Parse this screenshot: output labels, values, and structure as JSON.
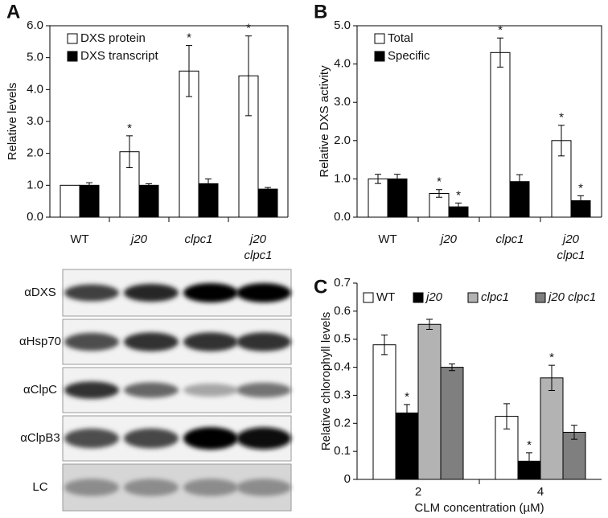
{
  "chart_data": [
    {
      "type": "bar",
      "panel": "A",
      "ylabel": "Relative levels",
      "categories": [
        "WT",
        "j20",
        "clpc1",
        "j20 clpc1"
      ],
      "series": [
        {
          "name": "DXS protein",
          "color": "#ffffff",
          "values": [
            1.0,
            2.05,
            4.58,
            4.43
          ],
          "errors": [
            0,
            0.5,
            0.8,
            1.25
          ],
          "significant": [
            false,
            true,
            true,
            true
          ]
        },
        {
          "name": "DXS transcript",
          "color": "#000000",
          "values": [
            1.0,
            1.0,
            1.05,
            0.88
          ],
          "errors": [
            0.08,
            0.05,
            0.15,
            0.05
          ],
          "significant": [
            false,
            false,
            false,
            false
          ]
        }
      ],
      "marker": "*",
      "legend": "top-left",
      "ylim": [
        0,
        6
      ],
      "yticks": [
        {
          "value": 0,
          "label": "0.0"
        },
        {
          "value": 1,
          "label": "1.0"
        },
        {
          "value": 2,
          "label": "2.0"
        },
        {
          "value": 3,
          "label": "3.0"
        },
        {
          "value": 4,
          "label": "4.0"
        },
        {
          "value": 5,
          "label": "5.0"
        },
        {
          "value": 6,
          "label": "6.0"
        }
      ]
    },
    {
      "type": "bar",
      "panel": "B",
      "ylabel": "Relative DXS activity",
      "categories": [
        "WT",
        "j20",
        "clpc1",
        "j20 clpc1"
      ],
      "series": [
        {
          "name": "Total",
          "color": "#ffffff",
          "values": [
            1.0,
            0.62,
            4.3,
            2.0
          ],
          "errors": [
            0.12,
            0.1,
            0.38,
            0.4
          ],
          "significant": [
            false,
            true,
            true,
            true
          ]
        },
        {
          "name": "Specific",
          "color": "#000000",
          "values": [
            1.0,
            0.27,
            0.93,
            0.43
          ],
          "errors": [
            0.12,
            0.1,
            0.18,
            0.13
          ],
          "significant": [
            false,
            true,
            false,
            true
          ]
        }
      ],
      "marker": "*",
      "legend": "top-left",
      "ylim": [
        0,
        5
      ],
      "yticks": [
        {
          "value": 0,
          "label": "0.0"
        },
        {
          "value": 1,
          "label": "1.0"
        },
        {
          "value": 2,
          "label": "2.0"
        },
        {
          "value": 3,
          "label": "3.0"
        },
        {
          "value": 4,
          "label": "4.0"
        },
        {
          "value": 5,
          "label": "5.0"
        }
      ]
    },
    {
      "type": "bar",
      "panel": "C",
      "ylabel": "Relative chlorophyll levels",
      "xlabel": "CLM concentration (µM)",
      "categories": [
        "2",
        "4"
      ],
      "series": [
        {
          "name": "WT",
          "color": "#ffffff",
          "values": [
            0.48,
            0.225
          ],
          "errors": [
            0.035,
            0.045
          ],
          "significant": [
            false,
            false
          ]
        },
        {
          "name": "j20",
          "color": "#000000",
          "values": [
            0.237,
            0.065
          ],
          "errors": [
            0.03,
            0.03
          ],
          "significant": [
            true,
            true
          ]
        },
        {
          "name": "clpc1",
          "color": "#b3b3b3",
          "values": [
            0.553,
            0.362
          ],
          "errors": [
            0.018,
            0.045
          ],
          "significant": [
            false,
            true
          ]
        },
        {
          "name": "j20 clpc1",
          "color": "#7f7f7f",
          "values": [
            0.4,
            0.168
          ],
          "errors": [
            0.012,
            0.025
          ],
          "significant": [
            false,
            false
          ]
        }
      ],
      "marker": "*",
      "legend": "top",
      "ylim": [
        0,
        0.7
      ],
      "yticks": [
        0,
        0.1,
        0.2,
        0.3,
        0.4,
        0.5,
        0.6,
        0.7
      ]
    }
  ],
  "blot": {
    "labels": [
      "αDXS",
      "αHsp70",
      "αClpC",
      "αClpB3",
      "LC"
    ]
  }
}
